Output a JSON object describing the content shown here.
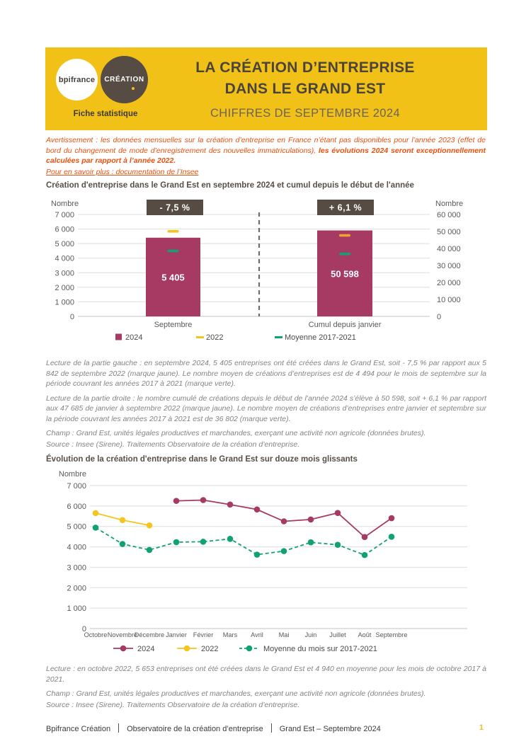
{
  "header": {
    "logo_bpifrance": "bpifrance",
    "logo_creation": "CRÉATION",
    "tagline": "Fiche statistique",
    "title_line1": "LA CRÉATION D’ENTREPRISE",
    "title_line2": "DANS LE GRAND EST",
    "subtitle": "CHIFFRES DE SEPTEMBRE 2024"
  },
  "warning": {
    "normal": "Avertissement : les données mensuelles sur la création d’entreprise en France n’étant pas disponibles pour l’année 2023 (effet de bord du changement de mode d’enregistrement des nouvelles immatriculations),  ",
    "bold": "les évolutions 2024 seront exceptionnellement calculées par rapport à l’année 2022."
  },
  "link": {
    "text": "Pour en savoir plus : documentation de l’Insee"
  },
  "colors": {
    "header_yellow": "#F2C118",
    "badge_brown": "#564C43",
    "magenta": "#A63A63",
    "yellow_line": "#F4C51E",
    "orange_mark": "#F0A42B",
    "green": "#12A171",
    "orange_text": "#E8500D",
    "grid": "#DEDEDE"
  },
  "chart_data": [
    {
      "type": "bar",
      "title": "Création d'entreprise dans le Grand Est en septembre 2024 et cumul depuis le début de l'année",
      "ylabel_left": "Nombre",
      "ylabel_right": "Nombre",
      "ylim_left": [
        0,
        7000
      ],
      "ylim_right": [
        0,
        60000
      ],
      "yticks_left": [
        "7 000",
        "6 000",
        "5 000",
        "4 000",
        "3 000",
        "2 000",
        "1 000",
        "0"
      ],
      "yticks_right": [
        "60 000",
        "50 000",
        "40 000",
        "30 000",
        "20 000",
        "10 000",
        "0"
      ],
      "colors": {
        "bar": "#A63A63"
      },
      "groups": [
        {
          "category": "Septembre",
          "axis_max": 7000,
          "badge": "- 7,5 %",
          "bar_2024": 5405,
          "bar_label": "5 405",
          "marks": [
            {
              "series": "2022",
              "value": 5842,
              "color": "#F4C51E"
            },
            {
              "series": "moyenne-2017-2021",
              "value": 4494,
              "color": "#12A171"
            }
          ]
        },
        {
          "category": "Cumul depuis janvier",
          "axis_max": 60000,
          "badge": "+ 6,1 %",
          "bar_2024": 50598,
          "bar_label": "50 598",
          "marks": [
            {
              "series": "2022",
              "value": 47685,
              "color": "#F0A42B"
            },
            {
              "series": "moyenne-2017-2021",
              "value": 36802,
              "color": "#12A171"
            }
          ]
        }
      ],
      "legend": [
        {
          "label": "2024",
          "color": "#A63A63",
          "marker": "square"
        },
        {
          "label": "2022",
          "color": "#F4C51E",
          "marker": "dash"
        },
        {
          "label": "Moyenne 2017-2021",
          "color": "#12A171",
          "marker": "dash"
        }
      ]
    },
    {
      "type": "line",
      "title": "Évolution de la création d'entreprise dans le Grand Est sur douze mois glissants",
      "ylabel": "Nombre",
      "ylim": [
        0,
        7000
      ],
      "yticks": [
        "7 000",
        "6 000",
        "5 000",
        "4 000",
        "3 000",
        "2 000",
        "1 000",
        "0"
      ],
      "categories": [
        "Octobre",
        "Novembre",
        "Décembre",
        "Janvier",
        "Février",
        "Mars",
        "Avril",
        "Mai",
        "Juin",
        "Juillet",
        "Août",
        "Septembre"
      ],
      "series": [
        {
          "name": "2024",
          "color": "#A63A63",
          "dashed": false,
          "values": [
            null,
            null,
            null,
            6250,
            6290,
            6070,
            5830,
            5250,
            5340,
            5660,
            4480,
            5405
          ]
        },
        {
          "name": "2022",
          "color": "#F4C51E",
          "dashed": false,
          "values": [
            5653,
            5310,
            5050,
            null,
            null,
            null,
            null,
            null,
            null,
            null,
            null,
            null
          ]
        },
        {
          "name": "Moyenne du mois sur 2017-2021",
          "color": "#12A171",
          "dashed": true,
          "values": [
            4940,
            4140,
            3850,
            4230,
            4250,
            4390,
            3620,
            3790,
            4220,
            4100,
            3600,
            4494
          ]
        }
      ],
      "legend": [
        {
          "label": "2024",
          "color": "#A63A63",
          "dashed": false
        },
        {
          "label": "2022",
          "color": "#F4C51E",
          "dashed": false
        },
        {
          "label": "Moyenne du mois sur 2017-2021",
          "color": "#12A171",
          "dashed": true
        }
      ]
    }
  ],
  "lecture1": {
    "p1": "Lecture de la partie gauche : en septembre 2024, 5 405 entreprises ont été créées dans le Grand Est, soit - 7,5 % par rapport aux 5 842 de septembre 2022 (marque jaune). Le nombre moyen de créations d’entreprises est de 4 494 pour le mois de septembre sur la période couvrant les années 2017 à 2021 (marque verte).",
    "p2": "Lecture de la partie droite : le nombre cumulé de créations depuis le début de l’année 2024 s’élève à 50 598, soit + 6,1 % par rapport aux 47 685 de janvier à septembre 2022 (marque jaune). Le nombre moyen de créations d’entreprises entre janvier et septembre sur la période couvrant les années 2017 à 2021 est de 36 802 (marque verte).",
    "champ": "Champ : Grand Est, unités légales productives et marchandes, exerçant une activité non agricole (données brutes).",
    "source": "Source : Insee (Sirene). Traitements Observatoire de la création d’entreprise."
  },
  "lecture2": {
    "p1": "Lecture : en octobre 2022, 5 653 entreprises ont été créées dans le Grand Est et 4 940 en moyenne pour les mois de octobre 2017 à 2021.",
    "champ": "Champ : Grand Est, unités légales productives et marchandes, exerçant une activité non agricole (données brutes).",
    "source": "Source : Insee (Sirene). Traitements Observatoire de la création d’entreprise."
  },
  "footer": {
    "part1": "Bpifrance Création",
    "part2": "Observatoire de la création d’entreprise",
    "part3": "Grand Est – Septembre 2024",
    "page": "1"
  }
}
